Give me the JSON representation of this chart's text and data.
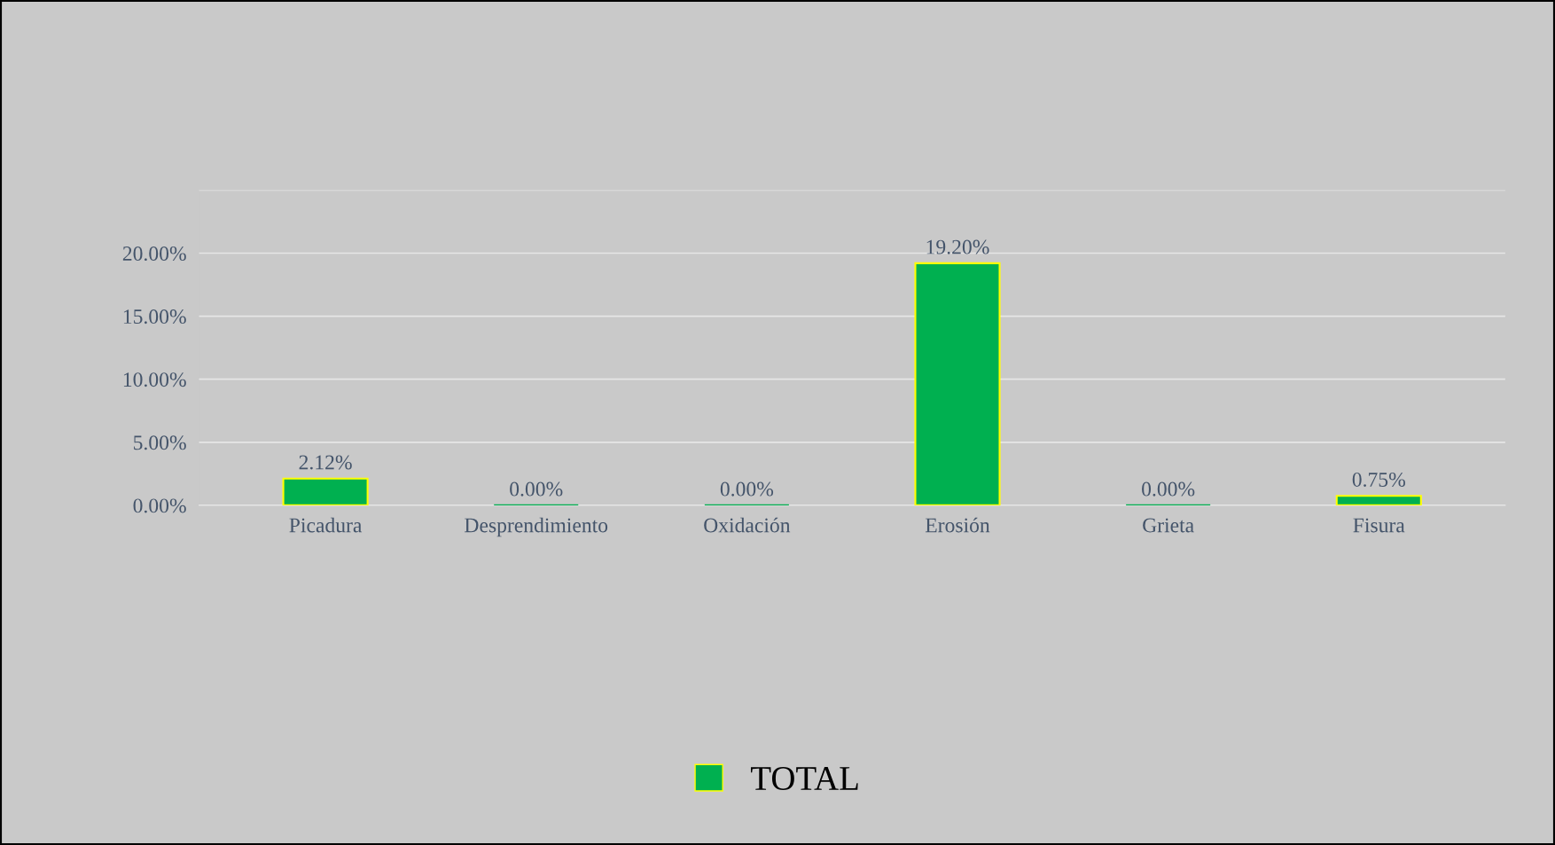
{
  "chart_data": {
    "type": "bar",
    "categories": [
      "Picadura",
      "Desprendimiento",
      "Oxidación",
      "Erosión",
      "Grieta",
      "Fisura"
    ],
    "series": [
      {
        "name": "TOTAL",
        "color": "#00b050",
        "values": [
          2.12,
          0.0,
          0.0,
          19.2,
          0.0,
          0.75
        ],
        "value_labels": [
          "2.12%",
          "0.00%",
          "0.00%",
          "19.20%",
          "0.00%",
          "0.75%"
        ]
      }
    ],
    "ylim": [
      0,
      25
    ],
    "yticks": [
      {
        "value": 0,
        "label": "0.00%"
      },
      {
        "value": 5,
        "label": "5.00%"
      },
      {
        "value": 10,
        "label": "10.00%"
      },
      {
        "value": 15,
        "label": "15.00%"
      },
      {
        "value": 20,
        "label": "20.00%"
      },
      {
        "value": 25,
        "label": null
      }
    ],
    "grid": "y",
    "legend": "bottom"
  }
}
